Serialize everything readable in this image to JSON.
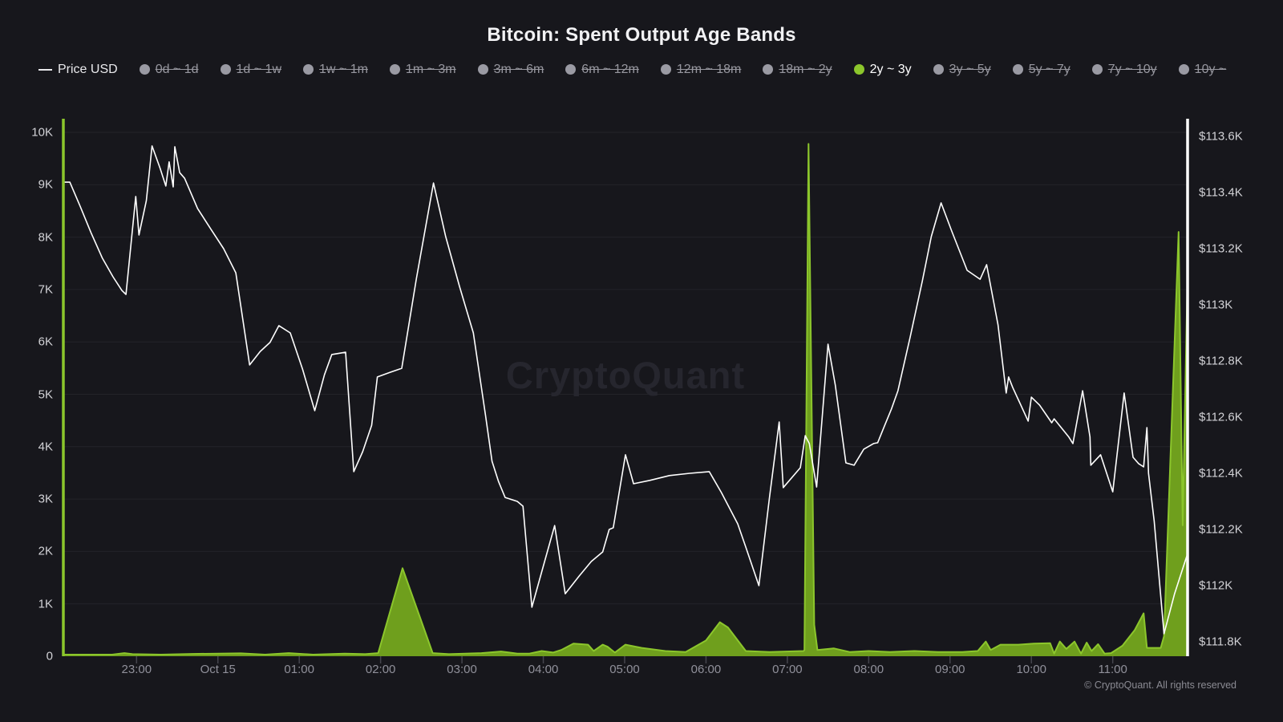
{
  "title": "Bitcoin: Spent Output Age Bands",
  "watermark": "CryptoQuant",
  "copyright": "© CryptoQuant. All rights reserved",
  "colors": {
    "background": "#17171c",
    "accent_green": "#8cc62c",
    "area_fill": "#6f9f1d",
    "price_line": "#ffffff",
    "legend_inactive_dot": "#9a9aa3",
    "grid": "#232329",
    "tick_mark": "#45454d"
  },
  "legend": {
    "items": [
      {
        "label": "Price USD",
        "type": "line",
        "active": true
      },
      {
        "label": "0d ~ 1d",
        "type": "band",
        "active": false
      },
      {
        "label": "1d ~ 1w",
        "type": "band",
        "active": false
      },
      {
        "label": "1w ~ 1m",
        "type": "band",
        "active": false
      },
      {
        "label": "1m ~ 3m",
        "type": "band",
        "active": false
      },
      {
        "label": "3m ~ 6m",
        "type": "band",
        "active": false
      },
      {
        "label": "6m ~ 12m",
        "type": "band",
        "active": false
      },
      {
        "label": "12m ~ 18m",
        "type": "band",
        "active": false
      },
      {
        "label": "18m ~ 2y",
        "type": "band",
        "active": false
      },
      {
        "label": "2y ~ 3y",
        "type": "band",
        "active": true
      },
      {
        "label": "3y ~ 5y",
        "type": "band",
        "active": false
      },
      {
        "label": "5y ~ 7y",
        "type": "band",
        "active": false
      },
      {
        "label": "7y ~ 10y",
        "type": "band",
        "active": false
      },
      {
        "label": "10y ~",
        "type": "band",
        "active": false
      }
    ]
  },
  "chart_data": {
    "type": "line+area",
    "title": "Bitcoin: Spent Output Age Bands",
    "x_unit": "hours relative to Oct 15 00:00",
    "x_domain": [
      -1.9,
      11.92
    ],
    "grid": "horizontal",
    "left_axis": {
      "min": 0,
      "max": 10000,
      "ticks": [
        {
          "v": 0,
          "label": "0"
        },
        {
          "v": 1000,
          "label": "1K"
        },
        {
          "v": 2000,
          "label": "2K"
        },
        {
          "v": 3000,
          "label": "3K"
        },
        {
          "v": 4000,
          "label": "4K"
        },
        {
          "v": 5000,
          "label": "5K"
        },
        {
          "v": 6000,
          "label": "6K"
        },
        {
          "v": 7000,
          "label": "7K"
        },
        {
          "v": 8000,
          "label": "8K"
        },
        {
          "v": 9000,
          "label": "9K"
        },
        {
          "v": 10000,
          "label": "10K"
        }
      ]
    },
    "right_axis": {
      "min": 111800,
      "max": 113600,
      "ticks": [
        {
          "v": 113600,
          "label": "$113.6K"
        },
        {
          "v": 113400,
          "label": "$113.4K"
        },
        {
          "v": 113200,
          "label": "$113.2K"
        },
        {
          "v": 113000,
          "label": "$113K"
        },
        {
          "v": 112800,
          "label": "$112.8K"
        },
        {
          "v": 112600,
          "label": "$112.6K"
        },
        {
          "v": 112400,
          "label": "$112.4K"
        },
        {
          "v": 112200,
          "label": "$112.2K"
        },
        {
          "v": 112000,
          "label": "$112K"
        },
        {
          "v": 111800,
          "label": "$111.8K"
        }
      ]
    },
    "x_axis": {
      "ticks": [
        {
          "h": -1,
          "label": "23:00"
        },
        {
          "h": 0,
          "label": "Oct 15"
        },
        {
          "h": 1,
          "label": "01:00"
        },
        {
          "h": 2,
          "label": "02:00"
        },
        {
          "h": 3,
          "label": "03:00"
        },
        {
          "h": 4,
          "label": "04:00"
        },
        {
          "h": 5,
          "label": "05:00"
        },
        {
          "h": 6,
          "label": "06:00"
        },
        {
          "h": 7,
          "label": "07:00"
        },
        {
          "h": 8,
          "label": "08:00"
        },
        {
          "h": 9,
          "label": "09:00"
        },
        {
          "h": 10,
          "label": "10:00"
        },
        {
          "h": 11,
          "label": "11:00"
        }
      ]
    },
    "series": [
      {
        "name": "2y ~ 3y",
        "kind": "area",
        "axis": "left",
        "stroke": "#8cc62c",
        "fill": "#6f9f1d",
        "points": [
          [
            -1.9,
            30
          ],
          [
            -1.3,
            30
          ],
          [
            -1.15,
            60
          ],
          [
            -1.05,
            40
          ],
          [
            -0.7,
            30
          ],
          [
            -0.31,
            45
          ],
          [
            0.28,
            55
          ],
          [
            0.58,
            30
          ],
          [
            0.87,
            60
          ],
          [
            1.17,
            30
          ],
          [
            1.56,
            50
          ],
          [
            1.81,
            40
          ],
          [
            1.97,
            60
          ],
          [
            2.27,
            1680
          ],
          [
            2.64,
            60
          ],
          [
            2.84,
            40
          ],
          [
            3.24,
            60
          ],
          [
            3.48,
            90
          ],
          [
            3.68,
            50
          ],
          [
            3.83,
            50
          ],
          [
            3.98,
            100
          ],
          [
            4.12,
            70
          ],
          [
            4.22,
            120
          ],
          [
            4.37,
            240
          ],
          [
            4.55,
            220
          ],
          [
            4.62,
            100
          ],
          [
            4.73,
            220
          ],
          [
            4.79,
            180
          ],
          [
            4.88,
            70
          ],
          [
            5.01,
            220
          ],
          [
            5.21,
            160
          ],
          [
            5.5,
            100
          ],
          [
            5.75,
            80
          ],
          [
            6.0,
            300
          ],
          [
            6.17,
            650
          ],
          [
            6.27,
            550
          ],
          [
            6.49,
            100
          ],
          [
            6.78,
            80
          ],
          [
            7.2,
            100
          ],
          [
            7.21,
            120
          ],
          [
            7.26,
            9780
          ],
          [
            7.33,
            600
          ],
          [
            7.37,
            120
          ],
          [
            7.57,
            150
          ],
          [
            7.77,
            80
          ],
          [
            8.0,
            100
          ],
          [
            8.26,
            80
          ],
          [
            8.56,
            100
          ],
          [
            8.85,
            80
          ],
          [
            9.15,
            80
          ],
          [
            9.34,
            100
          ],
          [
            9.44,
            280
          ],
          [
            9.5,
            120
          ],
          [
            9.62,
            220
          ],
          [
            9.84,
            220
          ],
          [
            10.03,
            240
          ],
          [
            10.23,
            250
          ],
          [
            10.28,
            50
          ],
          [
            10.35,
            280
          ],
          [
            10.43,
            140
          ],
          [
            10.53,
            280
          ],
          [
            10.61,
            50
          ],
          [
            10.68,
            260
          ],
          [
            10.74,
            100
          ],
          [
            10.82,
            230
          ],
          [
            10.9,
            50
          ],
          [
            10.98,
            60
          ],
          [
            11.12,
            200
          ],
          [
            11.27,
            500
          ],
          [
            11.38,
            820
          ],
          [
            11.42,
            160
          ],
          [
            11.59,
            160
          ],
          [
            11.63,
            380
          ],
          [
            11.81,
            8100
          ],
          [
            11.86,
            2500
          ],
          [
            11.92,
            7300
          ]
        ]
      },
      {
        "name": "Price USD",
        "kind": "line",
        "axis": "right",
        "stroke": "#ffffff",
        "points": [
          [
            -1.9,
            113437
          ],
          [
            -1.82,
            113437
          ],
          [
            -1.69,
            113349
          ],
          [
            -1.56,
            113257
          ],
          [
            -1.42,
            113166
          ],
          [
            -1.29,
            113100
          ],
          [
            -1.18,
            113051
          ],
          [
            -1.13,
            113037
          ],
          [
            -1.01,
            113386
          ],
          [
            -0.97,
            113249
          ],
          [
            -0.88,
            113371
          ],
          [
            -0.81,
            113566
          ],
          [
            -0.71,
            113486
          ],
          [
            -0.64,
            113423
          ],
          [
            -0.6,
            113509
          ],
          [
            -0.55,
            113420
          ],
          [
            -0.53,
            113563
          ],
          [
            -0.47,
            113471
          ],
          [
            -0.41,
            113451
          ],
          [
            -0.25,
            113343
          ],
          [
            -0.09,
            113271
          ],
          [
            0.07,
            113200
          ],
          [
            0.22,
            113114
          ],
          [
            0.39,
            112786
          ],
          [
            0.52,
            112834
          ],
          [
            0.64,
            112866
          ],
          [
            0.75,
            112926
          ],
          [
            0.89,
            112900
          ],
          [
            1.04,
            112771
          ],
          [
            1.19,
            112623
          ],
          [
            1.31,
            112751
          ],
          [
            1.4,
            112823
          ],
          [
            1.57,
            112831
          ],
          [
            1.67,
            112406
          ],
          [
            1.78,
            112477
          ],
          [
            1.89,
            112571
          ],
          [
            1.96,
            112743
          ],
          [
            2.12,
            112760
          ],
          [
            2.26,
            112774
          ],
          [
            2.44,
            113094
          ],
          [
            2.65,
            113434
          ],
          [
            2.8,
            113243
          ],
          [
            2.97,
            113066
          ],
          [
            3.14,
            112900
          ],
          [
            3.29,
            112606
          ],
          [
            3.37,
            112443
          ],
          [
            3.45,
            112371
          ],
          [
            3.53,
            112314
          ],
          [
            3.68,
            112300
          ],
          [
            3.75,
            112283
          ],
          [
            3.86,
            111923
          ],
          [
            4.0,
            112069
          ],
          [
            4.14,
            112214
          ],
          [
            4.27,
            111971
          ],
          [
            4.44,
            112034
          ],
          [
            4.59,
            112086
          ],
          [
            4.73,
            112120
          ],
          [
            4.81,
            112200
          ],
          [
            4.86,
            112206
          ],
          [
            5.01,
            112466
          ],
          [
            5.11,
            112363
          ],
          [
            5.31,
            112375
          ],
          [
            5.55,
            112392
          ],
          [
            5.8,
            112400
          ],
          [
            6.04,
            112406
          ],
          [
            6.19,
            112331
          ],
          [
            6.39,
            112220
          ],
          [
            6.49,
            112137
          ],
          [
            6.65,
            112000
          ],
          [
            6.78,
            112314
          ],
          [
            6.9,
            112583
          ],
          [
            6.95,
            112349
          ],
          [
            7.16,
            112420
          ],
          [
            7.22,
            112534
          ],
          [
            7.27,
            112506
          ],
          [
            7.36,
            112351
          ],
          [
            7.5,
            112860
          ],
          [
            7.59,
            112714
          ],
          [
            7.72,
            112437
          ],
          [
            7.82,
            112429
          ],
          [
            7.94,
            112486
          ],
          [
            8.06,
            112506
          ],
          [
            8.11,
            112509
          ],
          [
            8.19,
            112566
          ],
          [
            8.28,
            112629
          ],
          [
            8.36,
            112694
          ],
          [
            8.51,
            112886
          ],
          [
            8.66,
            113086
          ],
          [
            8.77,
            113243
          ],
          [
            8.89,
            113363
          ],
          [
            9.02,
            113263
          ],
          [
            9.21,
            113123
          ],
          [
            9.37,
            113091
          ],
          [
            9.45,
            113143
          ],
          [
            9.59,
            112929
          ],
          [
            9.69,
            112686
          ],
          [
            9.72,
            112743
          ],
          [
            9.77,
            112706
          ],
          [
            9.96,
            112586
          ],
          [
            10.0,
            112671
          ],
          [
            10.1,
            112643
          ],
          [
            10.25,
            112580
          ],
          [
            10.28,
            112594
          ],
          [
            10.46,
            112529
          ],
          [
            10.51,
            112506
          ],
          [
            10.63,
            112694
          ],
          [
            10.72,
            112529
          ],
          [
            10.73,
            112429
          ],
          [
            10.85,
            112466
          ],
          [
            11.0,
            112334
          ],
          [
            11.14,
            112686
          ],
          [
            11.25,
            112457
          ],
          [
            11.32,
            112434
          ],
          [
            11.38,
            112423
          ],
          [
            11.42,
            112563
          ],
          [
            11.44,
            112400
          ],
          [
            11.51,
            112229
          ],
          [
            11.63,
            111829
          ],
          [
            11.76,
            111971
          ],
          [
            11.92,
            112114
          ]
        ]
      }
    ]
  }
}
